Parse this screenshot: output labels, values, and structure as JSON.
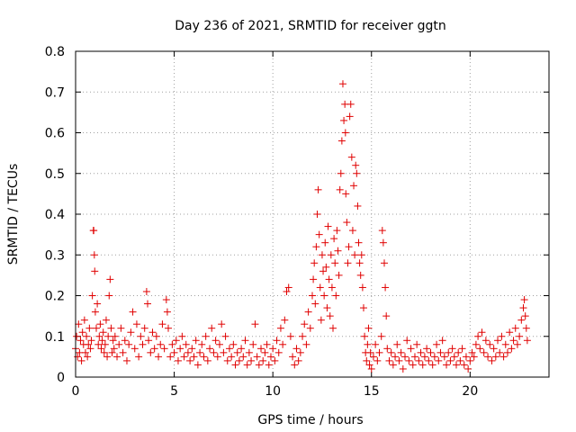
{
  "chart_data": {
    "type": "scatter",
    "title": "Day 236 of 2021, SRMTID for receiver ggtn",
    "xlabel": "GPS time / hours",
    "ylabel": "SRMTID / TECUs",
    "xlim": [
      0,
      24
    ],
    "ylim": [
      0,
      0.8
    ],
    "grid": true,
    "x_ticks": [
      0,
      5,
      10,
      15,
      20
    ],
    "x_tick_labels": [
      "0",
      "5",
      "10",
      "15",
      "20"
    ],
    "y_ticks": [
      0,
      0.1,
      0.2,
      0.3,
      0.4,
      0.5,
      0.6,
      0.7,
      0.8
    ],
    "y_tick_labels": [
      "0",
      "0.1",
      "0.2",
      "0.3",
      "0.4",
      "0.5",
      "0.6",
      "0.7",
      "0.8"
    ],
    "marker": "+",
    "marker_color": "#e00000",
    "series": [
      {
        "name": "SRMTID",
        "points": [
          [
            0.0,
            0.07
          ],
          [
            0.05,
            0.1
          ],
          [
            0.1,
            0.05
          ],
          [
            0.15,
            0.13
          ],
          [
            0.2,
            0.06
          ],
          [
            0.25,
            0.09
          ],
          [
            0.3,
            0.04
          ],
          [
            0.35,
            0.11
          ],
          [
            0.4,
            0.08
          ],
          [
            0.45,
            0.14
          ],
          [
            0.5,
            0.06
          ],
          [
            0.55,
            0.1
          ],
          [
            0.6,
            0.05
          ],
          [
            0.65,
            0.08
          ],
          [
            0.7,
            0.12
          ],
          [
            0.75,
            0.07
          ],
          [
            0.8,
            0.09
          ],
          [
            0.85,
            0.2
          ],
          [
            0.9,
            0.36
          ],
          [
            0.92,
            0.36
          ],
          [
            0.95,
            0.3
          ],
          [
            0.97,
            0.26
          ],
          [
            1.0,
            0.16
          ],
          [
            1.05,
            0.12
          ],
          [
            1.1,
            0.18
          ],
          [
            1.15,
            0.08
          ],
          [
            1.2,
            0.1
          ],
          [
            1.25,
            0.13
          ],
          [
            1.3,
            0.07
          ],
          [
            1.35,
            0.09
          ],
          [
            1.4,
            0.11
          ],
          [
            1.45,
            0.06
          ],
          [
            1.5,
            0.08
          ],
          [
            1.55,
            0.14
          ],
          [
            1.6,
            0.05
          ],
          [
            1.65,
            0.1
          ],
          [
            1.7,
            0.2
          ],
          [
            1.75,
            0.24
          ],
          [
            1.8,
            0.12
          ],
          [
            1.85,
            0.06
          ],
          [
            1.9,
            0.09
          ],
          [
            1.95,
            0.07
          ],
          [
            2.0,
            0.1
          ],
          [
            2.1,
            0.05
          ],
          [
            2.2,
            0.08
          ],
          [
            2.3,
            0.12
          ],
          [
            2.4,
            0.06
          ],
          [
            2.5,
            0.09
          ],
          [
            2.6,
            0.04
          ],
          [
            2.7,
            0.08
          ],
          [
            2.8,
            0.11
          ],
          [
            2.9,
            0.16
          ],
          [
            3.0,
            0.07
          ],
          [
            3.1,
            0.13
          ],
          [
            3.2,
            0.05
          ],
          [
            3.3,
            0.1
          ],
          [
            3.4,
            0.08
          ],
          [
            3.5,
            0.12
          ],
          [
            3.6,
            0.21
          ],
          [
            3.65,
            0.18
          ],
          [
            3.7,
            0.09
          ],
          [
            3.8,
            0.06
          ],
          [
            3.9,
            0.11
          ],
          [
            4.0,
            0.07
          ],
          [
            4.1,
            0.1
          ],
          [
            4.2,
            0.05
          ],
          [
            4.3,
            0.08
          ],
          [
            4.4,
            0.13
          ],
          [
            4.5,
            0.07
          ],
          [
            4.6,
            0.19
          ],
          [
            4.65,
            0.16
          ],
          [
            4.7,
            0.12
          ],
          [
            4.8,
            0.05
          ],
          [
            4.9,
            0.08
          ],
          [
            5.0,
            0.06
          ],
          [
            5.1,
            0.09
          ],
          [
            5.2,
            0.04
          ],
          [
            5.3,
            0.07
          ],
          [
            5.4,
            0.1
          ],
          [
            5.5,
            0.05
          ],
          [
            5.6,
            0.08
          ],
          [
            5.7,
            0.06
          ],
          [
            5.8,
            0.04
          ],
          [
            5.9,
            0.07
          ],
          [
            6.0,
            0.05
          ],
          [
            6.1,
            0.09
          ],
          [
            6.2,
            0.03
          ],
          [
            6.3,
            0.06
          ],
          [
            6.4,
            0.08
          ],
          [
            6.5,
            0.05
          ],
          [
            6.6,
            0.1
          ],
          [
            6.7,
            0.04
          ],
          [
            6.8,
            0.07
          ],
          [
            6.9,
            0.12
          ],
          [
            7.0,
            0.06
          ],
          [
            7.1,
            0.09
          ],
          [
            7.2,
            0.05
          ],
          [
            7.3,
            0.08
          ],
          [
            7.4,
            0.13
          ],
          [
            7.5,
            0.06
          ],
          [
            7.6,
            0.1
          ],
          [
            7.7,
            0.04
          ],
          [
            7.8,
            0.07
          ],
          [
            7.9,
            0.05
          ],
          [
            8.0,
            0.08
          ],
          [
            8.1,
            0.03
          ],
          [
            8.2,
            0.06
          ],
          [
            8.3,
            0.04
          ],
          [
            8.4,
            0.07
          ],
          [
            8.5,
            0.05
          ],
          [
            8.6,
            0.09
          ],
          [
            8.7,
            0.03
          ],
          [
            8.8,
            0.06
          ],
          [
            8.9,
            0.04
          ],
          [
            9.0,
            0.08
          ],
          [
            9.1,
            0.13
          ],
          [
            9.2,
            0.05
          ],
          [
            9.3,
            0.03
          ],
          [
            9.4,
            0.07
          ],
          [
            9.5,
            0.04
          ],
          [
            9.6,
            0.06
          ],
          [
            9.7,
            0.08
          ],
          [
            9.8,
            0.03
          ],
          [
            9.9,
            0.05
          ],
          [
            10.0,
            0.07
          ],
          [
            10.1,
            0.04
          ],
          [
            10.2,
            0.09
          ],
          [
            10.3,
            0.06
          ],
          [
            10.4,
            0.12
          ],
          [
            10.5,
            0.08
          ],
          [
            10.6,
            0.14
          ],
          [
            10.7,
            0.21
          ],
          [
            10.8,
            0.22
          ],
          [
            10.9,
            0.1
          ],
          [
            11.0,
            0.05
          ],
          [
            11.1,
            0.03
          ],
          [
            11.2,
            0.07
          ],
          [
            11.3,
            0.04
          ],
          [
            11.4,
            0.06
          ],
          [
            11.5,
            0.1
          ],
          [
            11.6,
            0.13
          ],
          [
            11.7,
            0.08
          ],
          [
            11.8,
            0.16
          ],
          [
            11.9,
            0.12
          ],
          [
            12.0,
            0.2
          ],
          [
            12.05,
            0.24
          ],
          [
            12.1,
            0.28
          ],
          [
            12.15,
            0.18
          ],
          [
            12.2,
            0.32
          ],
          [
            12.25,
            0.4
          ],
          [
            12.3,
            0.46
          ],
          [
            12.35,
            0.35
          ],
          [
            12.4,
            0.22
          ],
          [
            12.45,
            0.14
          ],
          [
            12.5,
            0.3
          ],
          [
            12.55,
            0.26
          ],
          [
            12.6,
            0.2
          ],
          [
            12.65,
            0.33
          ],
          [
            12.7,
            0.27
          ],
          [
            12.75,
            0.17
          ],
          [
            12.8,
            0.37
          ],
          [
            12.85,
            0.24
          ],
          [
            12.9,
            0.15
          ],
          [
            12.95,
            0.3
          ],
          [
            13.0,
            0.22
          ],
          [
            13.05,
            0.12
          ],
          [
            13.1,
            0.34
          ],
          [
            13.15,
            0.28
          ],
          [
            13.2,
            0.2
          ],
          [
            13.25,
            0.36
          ],
          [
            13.3,
            0.31
          ],
          [
            13.35,
            0.25
          ],
          [
            13.4,
            0.46
          ],
          [
            13.45,
            0.5
          ],
          [
            13.5,
            0.58
          ],
          [
            13.55,
            0.72
          ],
          [
            13.6,
            0.63
          ],
          [
            13.65,
            0.67
          ],
          [
            13.68,
            0.6
          ],
          [
            13.7,
            0.45
          ],
          [
            13.75,
            0.38
          ],
          [
            13.8,
            0.28
          ],
          [
            13.85,
            0.32
          ],
          [
            13.9,
            0.64
          ],
          [
            13.95,
            0.67
          ],
          [
            14.0,
            0.54
          ],
          [
            14.05,
            0.36
          ],
          [
            14.1,
            0.47
          ],
          [
            14.15,
            0.3
          ],
          [
            14.2,
            0.52
          ],
          [
            14.25,
            0.5
          ],
          [
            14.3,
            0.42
          ],
          [
            14.35,
            0.33
          ],
          [
            14.4,
            0.28
          ],
          [
            14.45,
            0.25
          ],
          [
            14.5,
            0.3
          ],
          [
            14.55,
            0.22
          ],
          [
            14.6,
            0.17
          ],
          [
            14.65,
            0.1
          ],
          [
            14.7,
            0.06
          ],
          [
            14.75,
            0.04
          ],
          [
            14.8,
            0.08
          ],
          [
            14.85,
            0.12
          ],
          [
            14.9,
            0.03
          ],
          [
            14.95,
            0.06
          ],
          [
            15.0,
            0.02
          ],
          [
            15.1,
            0.05
          ],
          [
            15.2,
            0.08
          ],
          [
            15.3,
            0.04
          ],
          [
            15.4,
            0.06
          ],
          [
            15.5,
            0.1
          ],
          [
            15.55,
            0.36
          ],
          [
            15.6,
            0.33
          ],
          [
            15.65,
            0.28
          ],
          [
            15.7,
            0.22
          ],
          [
            15.75,
            0.15
          ],
          [
            15.8,
            0.07
          ],
          [
            15.9,
            0.04
          ],
          [
            16.0,
            0.06
          ],
          [
            16.1,
            0.03
          ],
          [
            16.2,
            0.05
          ],
          [
            16.3,
            0.08
          ],
          [
            16.4,
            0.04
          ],
          [
            16.5,
            0.06
          ],
          [
            16.6,
            0.02
          ],
          [
            16.7,
            0.05
          ],
          [
            16.8,
            0.09
          ],
          [
            16.9,
            0.04
          ],
          [
            17.0,
            0.07
          ],
          [
            17.1,
            0.03
          ],
          [
            17.2,
            0.05
          ],
          [
            17.3,
            0.08
          ],
          [
            17.4,
            0.04
          ],
          [
            17.5,
            0.06
          ],
          [
            17.6,
            0.03
          ],
          [
            17.7,
            0.05
          ],
          [
            17.8,
            0.07
          ],
          [
            17.9,
            0.04
          ],
          [
            18.0,
            0.06
          ],
          [
            18.1,
            0.03
          ],
          [
            18.2,
            0.05
          ],
          [
            18.3,
            0.08
          ],
          [
            18.4,
            0.04
          ],
          [
            18.5,
            0.06
          ],
          [
            18.6,
            0.09
          ],
          [
            18.7,
            0.05
          ],
          [
            18.8,
            0.03
          ],
          [
            18.9,
            0.06
          ],
          [
            19.0,
            0.04
          ],
          [
            19.1,
            0.07
          ],
          [
            19.2,
            0.05
          ],
          [
            19.3,
            0.03
          ],
          [
            19.4,
            0.06
          ],
          [
            19.5,
            0.04
          ],
          [
            19.6,
            0.07
          ],
          [
            19.7,
            0.03
          ],
          [
            19.8,
            0.05
          ],
          [
            19.9,
            0.02
          ],
          [
            20.0,
            0.04
          ],
          [
            20.1,
            0.06
          ],
          [
            20.2,
            0.05
          ],
          [
            20.3,
            0.08
          ],
          [
            20.4,
            0.1
          ],
          [
            20.5,
            0.07
          ],
          [
            20.6,
            0.11
          ],
          [
            20.7,
            0.06
          ],
          [
            20.8,
            0.09
          ],
          [
            20.9,
            0.05
          ],
          [
            21.0,
            0.08
          ],
          [
            21.1,
            0.04
          ],
          [
            21.2,
            0.07
          ],
          [
            21.3,
            0.05
          ],
          [
            21.4,
            0.09
          ],
          [
            21.5,
            0.06
          ],
          [
            21.6,
            0.1
          ],
          [
            21.7,
            0.05
          ],
          [
            21.8,
            0.08
          ],
          [
            21.9,
            0.06
          ],
          [
            22.0,
            0.11
          ],
          [
            22.1,
            0.07
          ],
          [
            22.2,
            0.09
          ],
          [
            22.3,
            0.12
          ],
          [
            22.4,
            0.08
          ],
          [
            22.5,
            0.1
          ],
          [
            22.6,
            0.14
          ],
          [
            22.7,
            0.17
          ],
          [
            22.75,
            0.19
          ],
          [
            22.8,
            0.15
          ],
          [
            22.85,
            0.12
          ],
          [
            22.9,
            0.09
          ]
        ]
      }
    ]
  }
}
